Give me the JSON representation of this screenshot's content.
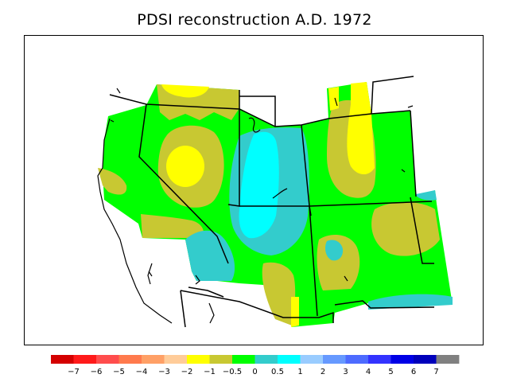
{
  "title": "PDSI reconstruction A.D. 1972",
  "legend": {
    "colors": [
      "#d40000",
      "#ff1a1a",
      "#ff4d4d",
      "#ff7a4d",
      "#ffa066",
      "#ffcc99",
      "#ffff00",
      "#c8c832",
      "#00ff00",
      "#33cccc",
      "#00ffff",
      "#99ccff",
      "#6699ff",
      "#4d6bff",
      "#3333ff",
      "#0000e6",
      "#0000bb",
      "#808080"
    ],
    "labels": [
      "−7",
      "−6",
      "−5",
      "−4",
      "−3",
      "−2",
      "−1",
      "−0.5",
      "0",
      "0.5",
      "1",
      "2",
      "3",
      "4",
      "5",
      "6",
      "7"
    ]
  },
  "map": {
    "region": "Western United States",
    "classes_present": [
      "−2 to −1",
      "−1 to −0.5",
      "−0.5 to 0",
      "0 to 0.5",
      "0.5 to 1"
    ]
  }
}
